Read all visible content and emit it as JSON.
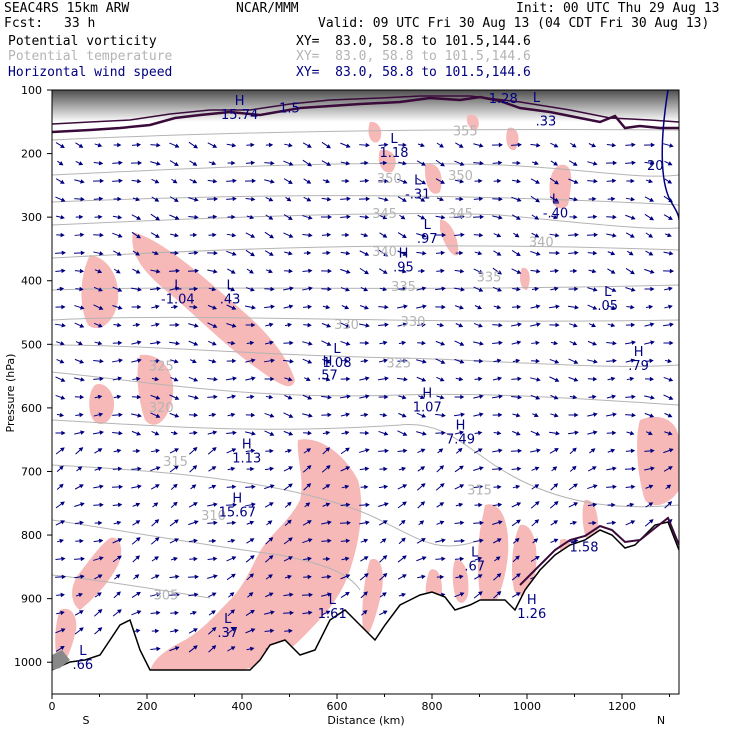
{
  "header": {
    "model": "SEAC4RS 15km ARW",
    "center": "NCAR/MMM",
    "init": "Init: 00 UTC Thu 29 Aug 13",
    "fcst_label": "Fcst:",
    "fcst_value": "33 h",
    "valid": "Valid: 09 UTC Fri 30 Aug 13 (04 CDT Fri 30 Aug 13)",
    "fields": [
      {
        "name": "Potential vorticity",
        "xy": "XY=  83.0, 58.8 to 101.5,144.6",
        "color": "#000000"
      },
      {
        "name": "Potential temperature",
        "xy": "XY=  83.0, 58.8 to 101.5,144.6",
        "color": "#b4b4b4"
      },
      {
        "name": "Horizontal wind speed",
        "xy": "XY=  83.0, 58.8 to 101.5,144.6",
        "color": "#000080"
      }
    ]
  },
  "chart_data": {
    "type": "cross-section",
    "xlabel": "Distance (km)",
    "ylabel": "Pressure (hPa)",
    "xlim": [
      0,
      1320
    ],
    "ylim": [
      1050,
      100
    ],
    "x_ticks": [
      0,
      200,
      400,
      600,
      800,
      1000,
      1200
    ],
    "y_ticks": [
      100,
      200,
      300,
      400,
      500,
      600,
      700,
      800,
      900,
      1000
    ],
    "end_labels": {
      "left": "S",
      "right": "N"
    },
    "colors": {
      "pv_fill": "#f7b8b8",
      "theta": "#b4b4b4",
      "wind": "#000080",
      "terrain": "#000000",
      "tropopause": "#3a0a3a"
    },
    "theta_contours": [
      {
        "value": "305",
        "at": [
          240,
          895
        ]
      },
      {
        "value": "310",
        "at": [
          340,
          770
        ]
      },
      {
        "value": "315",
        "at": [
          260,
          685
        ],
        "at2": [
          900,
          730
        ]
      },
      {
        "value": "320",
        "at": [
          230,
          600
        ]
      },
      {
        "value": "325",
        "at": [
          230,
          535
        ],
        "at2": [
          730,
          530
        ]
      },
      {
        "value": "330",
        "at": [
          620,
          470
        ],
        "at2": [
          760,
          465
        ]
      },
      {
        "value": "335",
        "at": [
          740,
          410
        ],
        "at2": [
          920,
          395
        ]
      },
      {
        "value": "340",
        "at": [
          700,
          355
        ],
        "at2": [
          1030,
          340
        ]
      },
      {
        "value": "345",
        "at": [
          700,
          295
        ],
        "at2": [
          860,
          295
        ]
      },
      {
        "value": "350",
        "at": [
          710,
          240
        ],
        "at2": [
          860,
          235
        ]
      },
      {
        "value": "355",
        "at": [
          870,
          165
        ]
      }
    ],
    "extrema": [
      {
        "type": "H",
        "value": "15.74",
        "at": [
          395,
          130
        ]
      },
      {
        "type": "",
        "value": "1.5",
        "at": [
          500,
          120
        ]
      },
      {
        "type": "",
        "value": "1.28",
        "at": [
          950,
          105
        ]
      },
      {
        "type": "L",
        "value": "",
        "at": [
          1020,
          125
        ]
      },
      {
        "type": "",
        "value": ".33",
        "at": [
          1040,
          140
        ]
      },
      {
        "type": "L",
        "value": "1.18",
        "at": [
          720,
          190
        ]
      },
      {
        "type": "L",
        "value": "-.31",
        "at": [
          770,
          255
        ]
      },
      {
        "type": "L",
        "value": "-.40",
        "at": [
          1060,
          285
        ]
      },
      {
        "type": "L",
        "value": ".97",
        "at": [
          790,
          325
        ]
      },
      {
        "type": "H",
        "value": ".95",
        "at": [
          740,
          370
        ]
      },
      {
        "type": "L",
        "value": "-1.04",
        "at": [
          265,
          420
        ]
      },
      {
        "type": "L",
        "value": ".43",
        "at": [
          375,
          420
        ]
      },
      {
        "type": "L",
        "value": ".05",
        "at": [
          1170,
          430
        ]
      },
      {
        "type": "H",
        "value": ".79",
        "at": [
          1235,
          525
        ]
      },
      {
        "type": "H",
        "value": ".57",
        "at": [
          580,
          540
        ]
      },
      {
        "type": "L",
        "value": "1.08",
        "at": [
          600,
          520
        ]
      },
      {
        "type": "H",
        "value": "1.07",
        "at": [
          790,
          590
        ]
      },
      {
        "type": "H",
        "value": "7.49",
        "at": [
          860,
          640
        ]
      },
      {
        "type": "H",
        "value": "1.13",
        "at": [
          410,
          670
        ]
      },
      {
        "type": "H",
        "value": "15.67",
        "at": [
          390,
          755
        ]
      },
      {
        "type": "",
        "value": "1.58",
        "at": [
          1120,
          810
        ]
      },
      {
        "type": "L",
        "value": ".67",
        "at": [
          890,
          840
        ]
      },
      {
        "type": "L",
        "value": "1.61",
        "at": [
          590,
          915
        ]
      },
      {
        "type": "H",
        "value": "1.26",
        "at": [
          1010,
          915
        ]
      },
      {
        "type": "",
        "value": "20",
        "at": [
          1270,
          210
        ]
      },
      {
        "type": "L",
        "value": ".37",
        "at": [
          370,
          945
        ]
      },
      {
        "type": "L",
        "value": ".66",
        "at": [
          65,
          995
        ]
      }
    ]
  }
}
